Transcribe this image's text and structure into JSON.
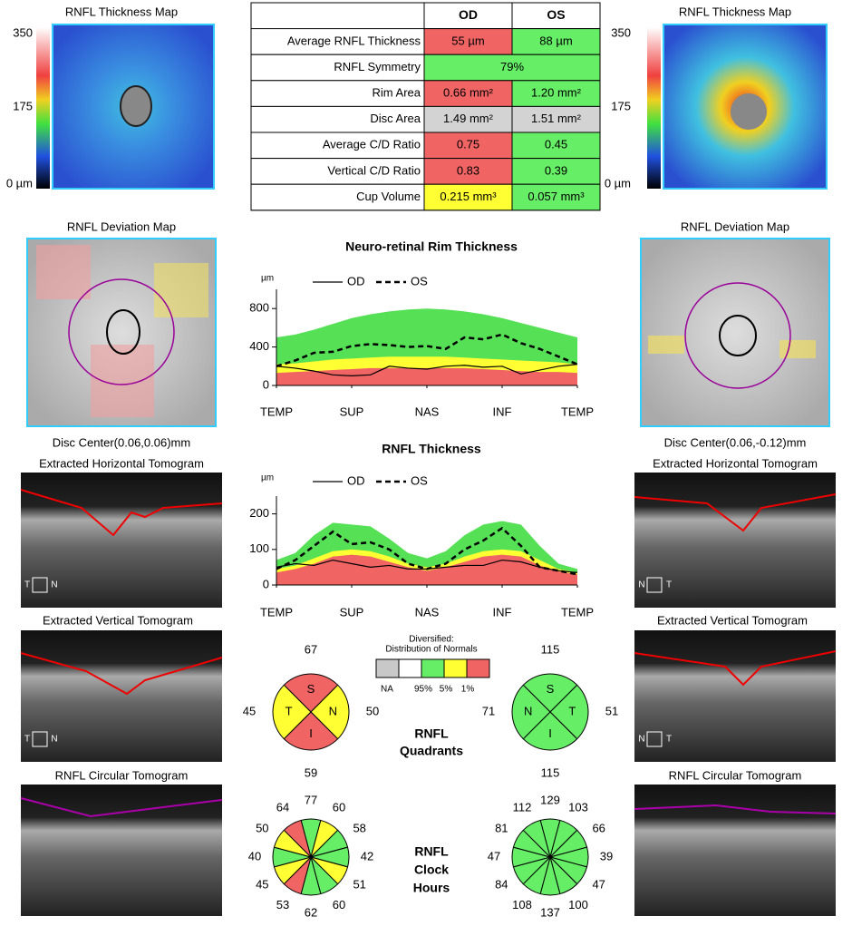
{
  "od_panel": {
    "thickness_map_title": "RNFL Thickness Map",
    "scale": [
      "350",
      "175",
      "0 µm"
    ],
    "deviation_title": "RNFL Deviation Map",
    "disc_center": "Disc Center(0.06,0.06)mm",
    "horizontal_title": "Extracted Horizontal Tomogram",
    "vertical_title": "Extracted Vertical Tomogram",
    "circular_title": "RNFL Circular Tomogram",
    "h_labels": [
      "T",
      "N"
    ],
    "v_labels": [
      "T",
      "N"
    ]
  },
  "os_panel": {
    "thickness_map_title": "RNFL Thickness Map",
    "scale": [
      "350",
      "175",
      "0 µm"
    ],
    "deviation_title": "RNFL Deviation Map",
    "disc_center": "Disc Center(0.06,-0.12)mm",
    "horizontal_title": "Extracted Horizontal Tomogram",
    "vertical_title": "Extracted Vertical Tomogram",
    "circular_title": "RNFL Circular Tomogram",
    "h_labels": [
      "N",
      "T"
    ],
    "v_labels": [
      "N",
      "T"
    ]
  },
  "table": {
    "header": [
      "OD",
      "OS"
    ],
    "rows": [
      {
        "label": "Average RNFL Thickness",
        "cells": [
          "55 µm",
          "88 µm"
        ],
        "colors": [
          "#f06464",
          "#66ee66"
        ]
      },
      {
        "label": "RNFL Symmetry",
        "cells": [
          "79%"
        ],
        "colors": [
          "#66ee66"
        ]
      },
      {
        "label": "Rim Area",
        "cells": [
          "0.66 mm²",
          "1.20 mm²"
        ],
        "colors": [
          "#f06464",
          "#66ee66"
        ]
      },
      {
        "label": "Disc Area",
        "cells": [
          "1.49 mm²",
          "1.51 mm²"
        ],
        "colors": [
          "#d3d3d3",
          "#d3d3d3"
        ]
      },
      {
        "label": "Average C/D Ratio",
        "cells": [
          "0.75",
          "0.45"
        ],
        "colors": [
          "#f06464",
          "#66ee66"
        ]
      },
      {
        "label": "Vertical C/D Ratio",
        "cells": [
          "0.83",
          "0.39"
        ],
        "colors": [
          "#f06464",
          "#66ee66"
        ]
      },
      {
        "label": "Cup Volume",
        "cells": [
          "0.215 mm³",
          "0.057 mm³"
        ],
        "colors": [
          "#ffff33",
          "#66ee66"
        ]
      }
    ]
  },
  "normals_legend": {
    "title": [
      "Diversified:",
      "Distribution of Normals"
    ],
    "colors": [
      "#c8c8c8",
      "#ffffff",
      "#66ee66",
      "#ffff33",
      "#f06464"
    ],
    "labels": [
      "NA",
      "95%",
      "5%",
      "1%"
    ]
  },
  "quadrants_label": [
    "RNFL",
    "Quadrants"
  ],
  "clock_label": [
    "RNFL",
    "Clock",
    "Hours"
  ],
  "chart_data": [
    {
      "type": "line",
      "title": "Neuro-retinal Rim Thickness",
      "y_label": "µm",
      "x": [
        0,
        1,
        2,
        3,
        4,
        5,
        6,
        7,
        8,
        9,
        10,
        11,
        12,
        13,
        14,
        15,
        16
      ],
      "xlim": [
        0,
        16
      ],
      "xticks": [
        {
          "value": 0,
          "label": "TEMP"
        },
        {
          "value": 4,
          "label": "SUP"
        },
        {
          "value": 8,
          "label": "NAS"
        },
        {
          "value": 12,
          "label": "INF"
        },
        {
          "value": 16,
          "label": "TEMP"
        }
      ],
      "ylim": [
        0,
        1000
      ],
      "yticks": [
        0,
        400,
        800
      ],
      "bands": [
        {
          "color": "#55e055",
          "values": [
            500,
            530,
            580,
            640,
            700,
            740,
            770,
            790,
            800,
            790,
            770,
            740,
            700,
            650,
            600,
            550,
            500
          ]
        },
        {
          "color": "#ffff33",
          "values": [
            220,
            230,
            250,
            270,
            280,
            290,
            300,
            300,
            300,
            300,
            290,
            280,
            270,
            260,
            250,
            240,
            220
          ]
        },
        {
          "color": "#f06464",
          "values": [
            130,
            140,
            150,
            160,
            170,
            180,
            180,
            180,
            180,
            180,
            180,
            170,
            160,
            150,
            140,
            140,
            130
          ]
        }
      ],
      "series": [
        {
          "name": "OD",
          "color": "#000000",
          "dash": false,
          "values": [
            200,
            180,
            150,
            110,
            100,
            110,
            200,
            180,
            170,
            200,
            210,
            190,
            200,
            120,
            160,
            200,
            220
          ]
        },
        {
          "name": "OS",
          "color": "#000000",
          "dash": true,
          "values": [
            200,
            260,
            340,
            350,
            410,
            430,
            420,
            400,
            410,
            380,
            500,
            480,
            530,
            440,
            380,
            300,
            220
          ]
        }
      ]
    },
    {
      "type": "line",
      "title": "RNFL Thickness",
      "y_label": "µm",
      "x": [
        0,
        1,
        2,
        3,
        4,
        5,
        6,
        7,
        8,
        9,
        10,
        11,
        12,
        13,
        14,
        15,
        16
      ],
      "xlim": [
        0,
        16
      ],
      "xticks": [
        {
          "value": 0,
          "label": "TEMP"
        },
        {
          "value": 4,
          "label": "SUP"
        },
        {
          "value": 8,
          "label": "NAS"
        },
        {
          "value": 12,
          "label": "INF"
        },
        {
          "value": 16,
          "label": "TEMP"
        }
      ],
      "ylim": [
        0,
        250
      ],
      "yticks": [
        0,
        100,
        200
      ],
      "bands": [
        {
          "color": "#55e055",
          "values": [
            70,
            90,
            140,
            175,
            170,
            165,
            130,
            90,
            75,
            95,
            140,
            170,
            180,
            170,
            110,
            60,
            45
          ]
        },
        {
          "color": "#ffff33",
          "values": [
            45,
            55,
            75,
            95,
            100,
            95,
            80,
            60,
            50,
            60,
            80,
            95,
            100,
            95,
            70,
            45,
            35
          ]
        },
        {
          "color": "#f06464",
          "values": [
            35,
            45,
            60,
            80,
            85,
            80,
            65,
            50,
            40,
            50,
            65,
            80,
            85,
            80,
            55,
            38,
            30
          ]
        }
      ],
      "series": [
        {
          "name": "OD",
          "color": "#000000",
          "dash": false,
          "values": [
            50,
            60,
            55,
            70,
            60,
            50,
            55,
            45,
            45,
            50,
            55,
            55,
            70,
            65,
            50,
            40,
            35
          ]
        },
        {
          "name": "OS",
          "color": "#000000",
          "dash": true,
          "values": [
            45,
            70,
            110,
            150,
            115,
            120,
            100,
            60,
            45,
            60,
            100,
            125,
            160,
            110,
            50,
            40,
            30
          ]
        }
      ]
    },
    {
      "type": "quadrant",
      "labels": [
        "S",
        "N",
        "I",
        "T"
      ],
      "values": [
        67,
        50,
        59,
        45
      ],
      "colors": [
        "#f06464",
        "#ffff33",
        "#f06464",
        "#ffff33"
      ]
    },
    {
      "type": "quadrant",
      "labels": [
        "S",
        "T",
        "I",
        "N"
      ],
      "values": [
        115,
        51,
        115,
        71
      ],
      "colors": [
        "#66ee66",
        "#66ee66",
        "#66ee66",
        "#66ee66"
      ]
    },
    {
      "type": "clock",
      "values": [
        77,
        60,
        58,
        42,
        51,
        60,
        62,
        53,
        45,
        40,
        50,
        64
      ],
      "colors": [
        "#66ee66",
        "#ffff33",
        "#66ee66",
        "#66ee66",
        "#ffff33",
        "#66ee66",
        "#66ee66",
        "#f06464",
        "#ffff33",
        "#66ee66",
        "#ffff33",
        "#f06464"
      ]
    },
    {
      "type": "clock",
      "values": [
        129,
        103,
        66,
        39,
        47,
        100,
        137,
        108,
        84,
        47,
        81,
        112
      ],
      "colors": [
        "#66ee66",
        "#66ee66",
        "#66ee66",
        "#66ee66",
        "#66ee66",
        "#66ee66",
        "#66ee66",
        "#66ee66",
        "#66ee66",
        "#66ee66",
        "#66ee66",
        "#66ee66"
      ]
    }
  ]
}
